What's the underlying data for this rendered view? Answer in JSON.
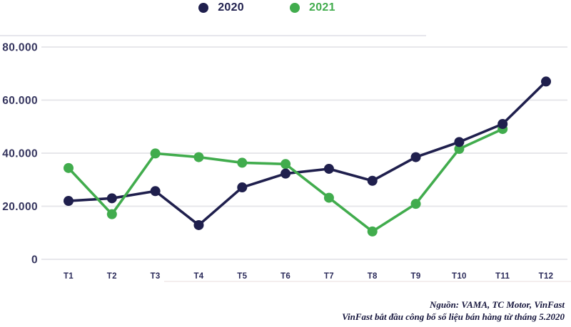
{
  "legend": {
    "items": [
      {
        "label": "2020",
        "color": "#1f1f4d"
      },
      {
        "label": "2021",
        "color": "#41ac4d"
      }
    ]
  },
  "chart_data": {
    "type": "line",
    "categories": [
      "T1",
      "T2",
      "T3",
      "T4",
      "T5",
      "T6",
      "T7",
      "T8",
      "T9",
      "T10",
      "T11",
      "T12"
    ],
    "series": [
      {
        "name": "2020",
        "color": "#1f1f4d",
        "values": [
          22000,
          23000,
          25700,
          12900,
          27100,
          32300,
          34100,
          29600,
          38500,
          44200,
          51000,
          67000
        ]
      },
      {
        "name": "2021",
        "color": "#41ac4d",
        "values": [
          34400,
          17000,
          39900,
          38500,
          36400,
          35900,
          23200,
          10500,
          20900,
          41600,
          49100,
          null
        ]
      }
    ],
    "title": "",
    "xlabel": "",
    "ylabel": "",
    "ylim": [
      0,
      80000
    ],
    "yticks": [
      0,
      20000,
      40000,
      60000,
      80000
    ],
    "ytick_labels": [
      "0",
      "20.000",
      "40.000",
      "60.000",
      "80.000"
    ],
    "grid": "horizontal",
    "legend_position": "top"
  },
  "footer": {
    "source_line1": "Nguồn: VAMA, TC Motor, VinFast",
    "source_line2": "VinFast bắt đầu công bố số liệu bán hàng từ tháng 5.2020"
  },
  "colors": {
    "navy": "#1f1f4d",
    "green": "#41ac4d",
    "gridline": "#e7e7eb",
    "top_divider": "#d7d7e0",
    "bottom_divider": "#f1e9e9",
    "ytick_text": "#35355e",
    "xtick_text": "#2a2a5a",
    "footer_text": "#15153c"
  }
}
